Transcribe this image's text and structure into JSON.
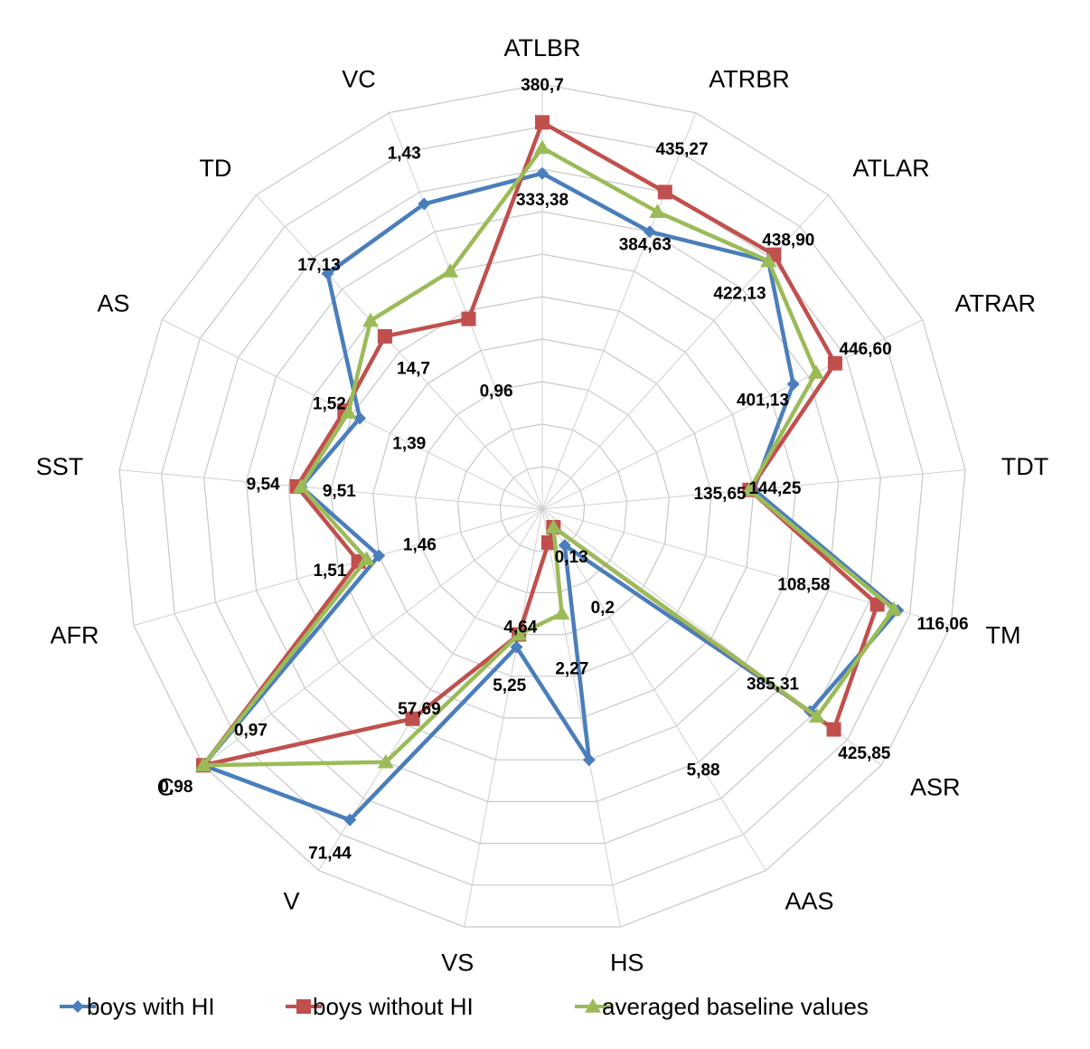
{
  "chart_data": {
    "type": "radar",
    "grid": true,
    "legend_position": "bottom",
    "axes": [
      "ATLBR",
      "ATRBR",
      "ATLAR",
      "ATRAR",
      "TDT",
      "TM",
      "ASR",
      "AAS",
      "HS",
      "VS",
      "V",
      "C",
      "AFR",
      "SST",
      "AS",
      "TD",
      "VC"
    ],
    "series": [
      {
        "name": "boys with HI",
        "color": "#4a7ebb",
        "marker": "diamond",
        "values": [
          0.79,
          0.7,
          0.79,
          0.66,
          0.5,
          0.87,
          0.79,
          0.1,
          0.6,
          0.33,
          0.86,
          1.0,
          0.4,
          0.57,
          0.48,
          0.75,
          0.77
        ]
      },
      {
        "name": "boys without HI",
        "color": "#c0504d",
        "marker": "square",
        "values": [
          0.91,
          0.8,
          0.81,
          0.77,
          0.49,
          0.82,
          0.86,
          0.05,
          0.08,
          0.3,
          0.58,
          1.0,
          0.45,
          0.58,
          0.52,
          0.55,
          0.48
        ]
      },
      {
        "name": "averaged baseline values",
        "color": "#9bbb59",
        "marker": "triangle",
        "values": [
          0.85,
          0.75,
          0.79,
          0.72,
          0.49,
          0.86,
          0.81,
          0.05,
          0.25,
          0.3,
          0.7,
          1.0,
          0.43,
          0.57,
          0.51,
          0.6,
          0.6
        ]
      }
    ],
    "data_labels": [
      {
        "text": "380,7",
        "axis": 0,
        "r": 1.0
      },
      {
        "text": "333,38",
        "axis": 0,
        "r": 0.73
      },
      {
        "text": "435,27",
        "axis": 1,
        "r": 0.91
      },
      {
        "text": "384,63",
        "axis": 1,
        "r": 0.67
      },
      {
        "text": "438,90",
        "axis": 2,
        "r": 0.86
      },
      {
        "text": "422,13",
        "axis": 2,
        "r": 0.69
      },
      {
        "text": "446,60",
        "axis": 3,
        "r": 0.85
      },
      {
        "text": "401,13",
        "axis": 3,
        "r": 0.58
      },
      {
        "text": "144,25",
        "axis": 4,
        "r": 0.55
      },
      {
        "text": "135,65",
        "axis": 4,
        "r": 0.42
      },
      {
        "text": "116,06",
        "axis": 5,
        "r": 0.98
      },
      {
        "text": "108,58",
        "axis": 5,
        "r": 0.64
      },
      {
        "text": "385,31",
        "axis": 6,
        "r": 0.68
      },
      {
        "text": "425,85",
        "axis": 6,
        "r": 0.95
      },
      {
        "text": "5,88",
        "axis": 7,
        "r": 0.72
      },
      {
        "text": "5,25",
        "axis": 9,
        "r": 0.42
      },
      {
        "text": "71,44",
        "axis": 10,
        "r": 0.95
      },
      {
        "text": "57,69",
        "axis": 10,
        "r": 0.55
      },
      {
        "text": "0,97",
        "axis": 11,
        "r": 0.86
      },
      {
        "text": "0,98",
        "axis": 11,
        "r": 1.08
      },
      {
        "text": "1,51",
        "axis": 12,
        "r": 0.52
      },
      {
        "text": "1,46",
        "axis": 12,
        "r": 0.3
      },
      {
        "text": "9,54",
        "axis": 13,
        "r": 0.66
      },
      {
        "text": "9,51",
        "axis": 13,
        "r": 0.48
      },
      {
        "text": "1,52",
        "axis": 14,
        "r": 0.56
      },
      {
        "text": "1,39",
        "axis": 14,
        "r": 0.35
      },
      {
        "text": "17,13",
        "axis": 15,
        "r": 0.78
      },
      {
        "text": "14,7",
        "axis": 15,
        "r": 0.45
      },
      {
        "text": "1,43",
        "axis": 16,
        "r": 0.9
      },
      {
        "text": "0,96",
        "axis": 16,
        "r": 0.3
      },
      {
        "text": "0,13",
        "axis": 7,
        "r": 0.13
      },
      {
        "text": "0,2",
        "axis": 7,
        "r": 0.27
      },
      {
        "text": "2,27",
        "axis": 8,
        "r": 0.38
      },
      {
        "text": "4,64",
        "axis": 9,
        "r": 0.28
      }
    ]
  }
}
